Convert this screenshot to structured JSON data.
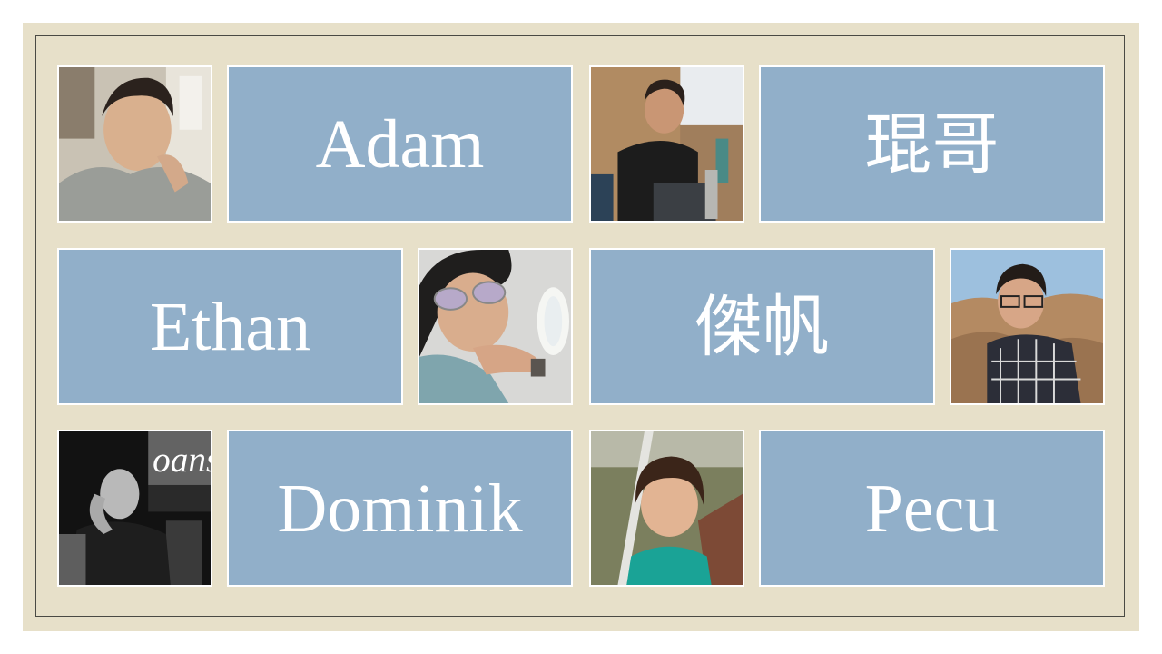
{
  "slide": {
    "names": {
      "adam": "Adam",
      "kun_ge": "琨哥",
      "ethan": "Ethan",
      "jie_fan": "傑帆",
      "dominik": "Dominik",
      "pecu": "Pecu"
    },
    "photo_sign_text": "oans",
    "colors": {
      "background": "#e7e0c9",
      "name_tile": "#91afc9",
      "name_text": "#ffffff",
      "frame_border": "#4a4a44"
    }
  }
}
